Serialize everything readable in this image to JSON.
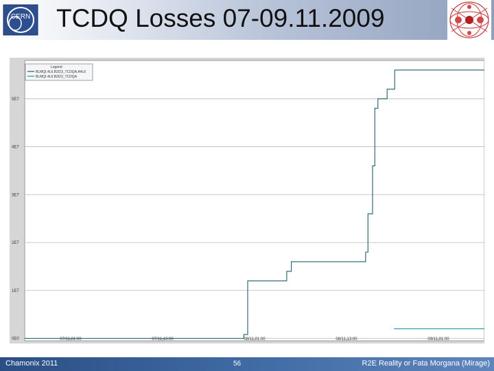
{
  "slide": {
    "title": "TCDQ Losses 07-09.11.2009",
    "logo_text": "CERN"
  },
  "footer": {
    "left": "Chamonix 2011",
    "page": "56",
    "right": "R2E Reality or Fata Morgana (Mirage)"
  },
  "colors": {
    "series_1": "#1f5f6b",
    "series_2": "#2a8fb0",
    "grid": "#b8b8b8",
    "footer": "#3a64a0"
  },
  "chart_data": {
    "type": "line",
    "ylim": [
      -500000,
      58000000
    ],
    "xlim": [
      0,
      60
    ],
    "x_tick_positions": [
      6,
      18,
      30,
      42,
      54
    ],
    "x_tick_labels": [
      "07/11 01:00",
      "07/11 13:00",
      "08/11 01:00",
      "08/11 13:00",
      "09/11 01:00"
    ],
    "y_ticks": [
      0,
      10000000,
      20000000,
      30000000,
      40000000,
      50000000
    ],
    "y_tick_labels": [
      "0E0",
      "1E7",
      "2E7",
      "3E7",
      "4E7",
      "5E7"
    ],
    "grid": true,
    "legend": {
      "placement": "top-left",
      "title": "Legend",
      "entries": [
        "BLMQI.4L6.B2I23_TCDQA.A4L6",
        "BLMQI.4L6.B2I23_TCDQA"
      ]
    },
    "series": [
      {
        "name": "BLMQI.4L6.B2I23_TCDQA.A4L6",
        "x": [
          0,
          28.6,
          28.6,
          29.1,
          29.1,
          34.2,
          34.2,
          34.8,
          34.8,
          44.5,
          44.5,
          44.8,
          44.8,
          45.4,
          45.4,
          45.7,
          45.7,
          46.1,
          46.1,
          47.3,
          47.3,
          48.3,
          48.3,
          60
        ],
        "y": [
          0,
          0,
          800000,
          800000,
          12000000,
          12000000,
          14000000,
          14000000,
          16000000,
          16000000,
          18000000,
          18000000,
          26000000,
          26000000,
          36000000,
          36000000,
          48000000,
          48000000,
          50000000,
          50000000,
          52000000,
          52000000,
          56000000,
          56000000
        ]
      },
      {
        "name": "BLMQI.4L6.B2I23_TCDQA",
        "x": [
          48.2,
          60
        ],
        "y": [
          2000000,
          2000000
        ]
      }
    ]
  }
}
